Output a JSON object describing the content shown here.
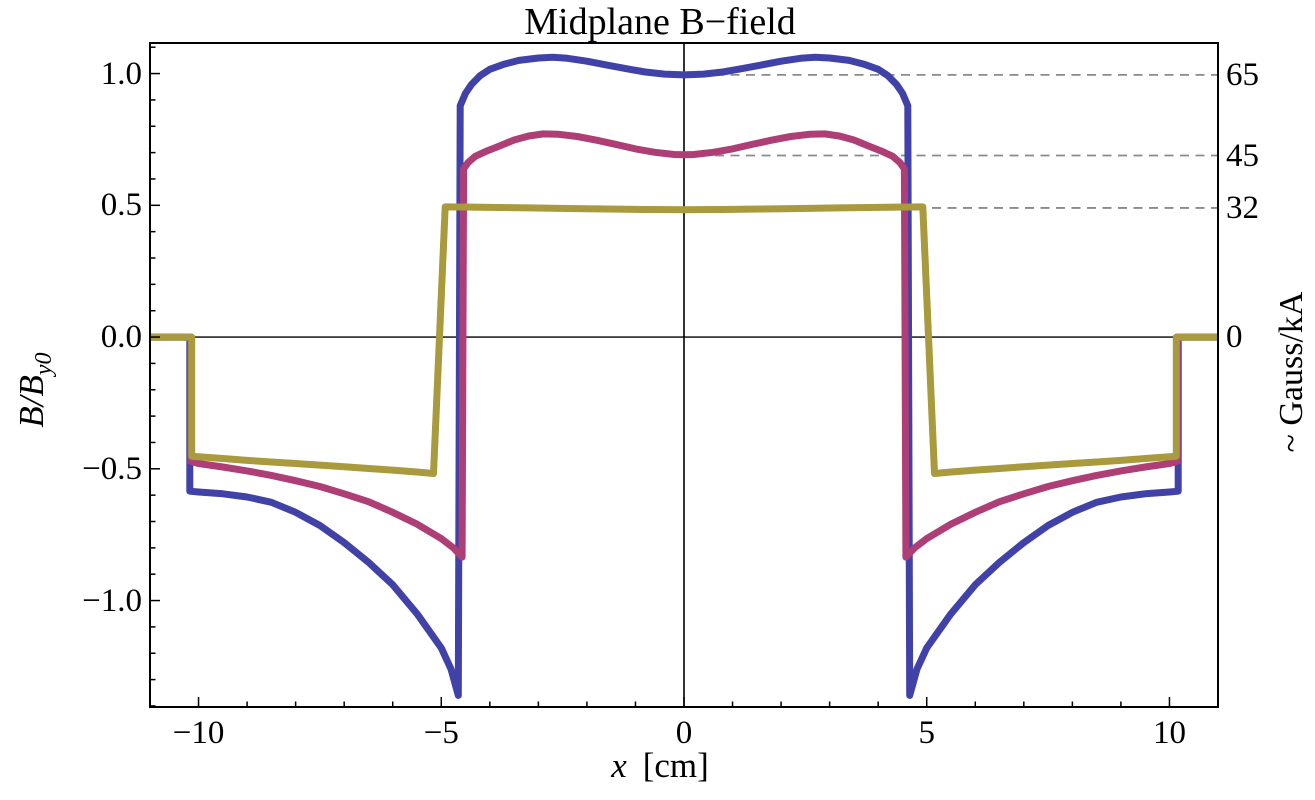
{
  "title": "Midplane B−field",
  "chart_data": {
    "type": "line",
    "title": "Midplane B−field",
    "xlabel_var": "x",
    "xlabel_unit": "[cm]",
    "ylabel_pre": "B/B",
    "ylabel_sub": "y0",
    "right_axis_label": "~ Gauss/kA",
    "xlim": [
      -11,
      11
    ],
    "ylim": [
      -1.404,
      1.116
    ],
    "background": "#ffffff",
    "axes_color": "#000000",
    "grid": "dashed-right-half-only",
    "legend": "none",
    "x_major_ticks": [
      {
        "value": -10,
        "label": "−10"
      },
      {
        "value": -5,
        "label": "−5"
      },
      {
        "value": 0,
        "label": "0"
      },
      {
        "value": 5,
        "label": "5"
      },
      {
        "value": 10,
        "label": "10"
      }
    ],
    "x_minor_tick_step": 1,
    "y_major_ticks": [
      {
        "value": 1.0,
        "label": "1.0"
      },
      {
        "value": 0.5,
        "label": "0.5"
      },
      {
        "value": 0.0,
        "label": "0.0"
      },
      {
        "value": -0.5,
        "label": "−0.5"
      },
      {
        "value": -1.0,
        "label": "−1.0"
      }
    ],
    "y_minor_tick_step": 0.1,
    "right_axis_ticks": [
      {
        "value": 0.995,
        "label": "65"
      },
      {
        "value": 0.689,
        "label": "45"
      },
      {
        "value": 0.49,
        "label": "32"
      },
      {
        "value": 0.0,
        "label": "0"
      }
    ],
    "dashed_gridlines": {
      "color": "#8a8a8a",
      "x_start": 0,
      "x_end": 11,
      "values": [
        0.995,
        0.689,
        0.49
      ]
    },
    "series": [
      {
        "id": "blue",
        "right_axis_value": 65,
        "color": "#4142a7",
        "stroke_width": 7,
        "points": [
          [
            -11,
            0
          ],
          [
            -10.18,
            0
          ],
          [
            -10.18,
            -0.585
          ],
          [
            -10,
            -0.588
          ],
          [
            -9.5,
            -0.595
          ],
          [
            -9,
            -0.607
          ],
          [
            -8.5,
            -0.627
          ],
          [
            -8,
            -0.665
          ],
          [
            -7.5,
            -0.715
          ],
          [
            -7,
            -0.78
          ],
          [
            -6.5,
            -0.855
          ],
          [
            -6,
            -0.94
          ],
          [
            -5.5,
            -1.05
          ],
          [
            -5,
            -1.18
          ],
          [
            -4.8,
            -1.26
          ],
          [
            -4.65,
            -1.36
          ],
          [
            -4.61,
            0.878
          ],
          [
            -4.5,
            0.925
          ],
          [
            -4.38,
            0.958
          ],
          [
            -4.2,
            0.992
          ],
          [
            -4,
            1.016
          ],
          [
            -3.7,
            1.036
          ],
          [
            -3.4,
            1.05
          ],
          [
            -3,
            1.059
          ],
          [
            -2.7,
            1.062
          ],
          [
            -2.4,
            1.058
          ],
          [
            -2,
            1.047
          ],
          [
            -1.6,
            1.033
          ],
          [
            -1.2,
            1.019
          ],
          [
            -0.8,
            1.006
          ],
          [
            -0.4,
            0.998
          ],
          [
            0,
            0.995
          ],
          [
            0.4,
            0.998
          ],
          [
            0.8,
            1.006
          ],
          [
            1.2,
            1.019
          ],
          [
            1.6,
            1.033
          ],
          [
            2,
            1.047
          ],
          [
            2.4,
            1.058
          ],
          [
            2.7,
            1.062
          ],
          [
            3,
            1.059
          ],
          [
            3.4,
            1.05
          ],
          [
            3.7,
            1.036
          ],
          [
            4,
            1.016
          ],
          [
            4.2,
            0.992
          ],
          [
            4.38,
            0.958
          ],
          [
            4.5,
            0.925
          ],
          [
            4.61,
            0.878
          ],
          [
            4.65,
            -1.36
          ],
          [
            4.8,
            -1.26
          ],
          [
            5,
            -1.18
          ],
          [
            5.5,
            -1.05
          ],
          [
            6,
            -0.94
          ],
          [
            6.5,
            -0.855
          ],
          [
            7,
            -0.78
          ],
          [
            7.5,
            -0.715
          ],
          [
            8,
            -0.665
          ],
          [
            8.5,
            -0.627
          ],
          [
            9,
            -0.607
          ],
          [
            9.5,
            -0.595
          ],
          [
            10,
            -0.588
          ],
          [
            10.18,
            -0.585
          ],
          [
            10.18,
            0
          ],
          [
            11,
            0
          ]
        ]
      },
      {
        "id": "red-magenta",
        "right_axis_value": 45,
        "color": "#ad3e76",
        "stroke_width": 7,
        "points": [
          [
            -11,
            0
          ],
          [
            -10.16,
            0
          ],
          [
            -10.16,
            -0.472
          ],
          [
            -10,
            -0.48
          ],
          [
            -9.5,
            -0.493
          ],
          [
            -9,
            -0.508
          ],
          [
            -8.5,
            -0.525
          ],
          [
            -8,
            -0.545
          ],
          [
            -7.5,
            -0.567
          ],
          [
            -7,
            -0.595
          ],
          [
            -6.5,
            -0.625
          ],
          [
            -6,
            -0.665
          ],
          [
            -5.5,
            -0.71
          ],
          [
            -5,
            -0.765
          ],
          [
            -4.75,
            -0.8
          ],
          [
            -4.57,
            -0.835
          ],
          [
            -4.54,
            0.638
          ],
          [
            -4.45,
            0.662
          ],
          [
            -4.3,
            0.686
          ],
          [
            -4.1,
            0.703
          ],
          [
            -3.8,
            0.725
          ],
          [
            -3.5,
            0.748
          ],
          [
            -3.2,
            0.763
          ],
          [
            -2.9,
            0.771
          ],
          [
            -2.6,
            0.77
          ],
          [
            -2.2,
            0.761
          ],
          [
            -1.8,
            0.747
          ],
          [
            -1.4,
            0.731
          ],
          [
            -1,
            0.714
          ],
          [
            -0.6,
            0.701
          ],
          [
            -0.2,
            0.693
          ],
          [
            0,
            0.692
          ],
          [
            0.2,
            0.693
          ],
          [
            0.6,
            0.701
          ],
          [
            1,
            0.714
          ],
          [
            1.4,
            0.731
          ],
          [
            1.8,
            0.747
          ],
          [
            2.2,
            0.761
          ],
          [
            2.6,
            0.77
          ],
          [
            2.9,
            0.771
          ],
          [
            3.2,
            0.763
          ],
          [
            3.5,
            0.748
          ],
          [
            3.8,
            0.725
          ],
          [
            4.1,
            0.703
          ],
          [
            4.3,
            0.686
          ],
          [
            4.45,
            0.662
          ],
          [
            4.54,
            0.638
          ],
          [
            4.57,
            -0.835
          ],
          [
            4.75,
            -0.8
          ],
          [
            5,
            -0.765
          ],
          [
            5.5,
            -0.71
          ],
          [
            6,
            -0.665
          ],
          [
            6.5,
            -0.625
          ],
          [
            7,
            -0.595
          ],
          [
            7.5,
            -0.567
          ],
          [
            8,
            -0.545
          ],
          [
            8.5,
            -0.525
          ],
          [
            9,
            -0.508
          ],
          [
            9.5,
            -0.493
          ],
          [
            10,
            -0.48
          ],
          [
            10.16,
            -0.472
          ],
          [
            10.16,
            0
          ],
          [
            11,
            0
          ]
        ]
      },
      {
        "id": "yellow-olive",
        "right_axis_value": 32,
        "color": "#a89a3d",
        "stroke_width": 7,
        "points": [
          [
            -11,
            0
          ],
          [
            -10.14,
            0
          ],
          [
            -10.14,
            -0.452
          ],
          [
            -9.5,
            -0.461
          ],
          [
            -9,
            -0.468
          ],
          [
            -8.5,
            -0.474
          ],
          [
            -8,
            -0.48
          ],
          [
            -7.5,
            -0.486
          ],
          [
            -7,
            -0.492
          ],
          [
            -6.5,
            -0.499
          ],
          [
            -6,
            -0.505
          ],
          [
            -5.5,
            -0.512
          ],
          [
            -5.16,
            -0.518
          ],
          [
            -4.92,
            0.494
          ],
          [
            -4.6,
            0.4935
          ],
          [
            -4,
            0.492
          ],
          [
            -3.2,
            0.49
          ],
          [
            -2.4,
            0.488
          ],
          [
            -1.6,
            0.486
          ],
          [
            -0.8,
            0.484
          ],
          [
            0,
            0.483
          ],
          [
            0.8,
            0.484
          ],
          [
            1.6,
            0.486
          ],
          [
            2.4,
            0.488
          ],
          [
            3.2,
            0.49
          ],
          [
            4,
            0.492
          ],
          [
            4.6,
            0.4935
          ],
          [
            4.92,
            0.494
          ],
          [
            5.16,
            -0.518
          ],
          [
            5.5,
            -0.512
          ],
          [
            6,
            -0.505
          ],
          [
            6.5,
            -0.499
          ],
          [
            7,
            -0.492
          ],
          [
            7.5,
            -0.486
          ],
          [
            8,
            -0.48
          ],
          [
            8.5,
            -0.474
          ],
          [
            9,
            -0.468
          ],
          [
            9.5,
            -0.461
          ],
          [
            10.14,
            -0.452
          ],
          [
            10.14,
            0
          ],
          [
            11,
            0
          ]
        ]
      }
    ]
  }
}
